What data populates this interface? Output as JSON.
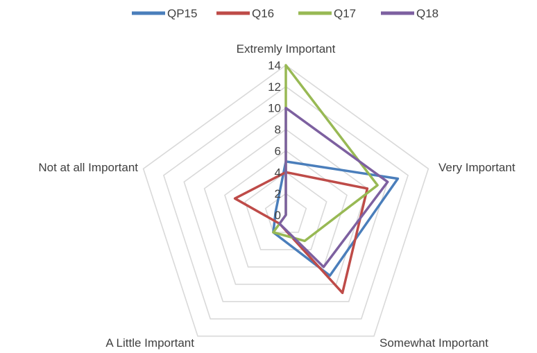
{
  "chart_data": {
    "type": "radar",
    "categories": [
      "Extremly Important",
      "Very Important",
      "Somewhat Important",
      "A Little Important",
      "Not at all Important"
    ],
    "series": [
      {
        "name": "QP15",
        "color": "#4a7ebb",
        "values": [
          5,
          11,
          7,
          2,
          1
        ]
      },
      {
        "name": "Q16",
        "color": "#be4b48",
        "values": [
          4,
          8,
          9,
          1,
          5
        ]
      },
      {
        "name": "Q17",
        "color": "#98b954",
        "values": [
          14,
          9,
          3,
          2,
          0
        ]
      },
      {
        "name": "Q18",
        "color": "#7d60a0",
        "values": [
          10,
          10,
          6,
          1,
          0
        ]
      }
    ],
    "radial_ticks": [
      "0",
      "2",
      "4",
      "6",
      "8",
      "10",
      "12",
      "14"
    ],
    "rlim": [
      0,
      14
    ],
    "grid": true,
    "legend_position": "top"
  }
}
